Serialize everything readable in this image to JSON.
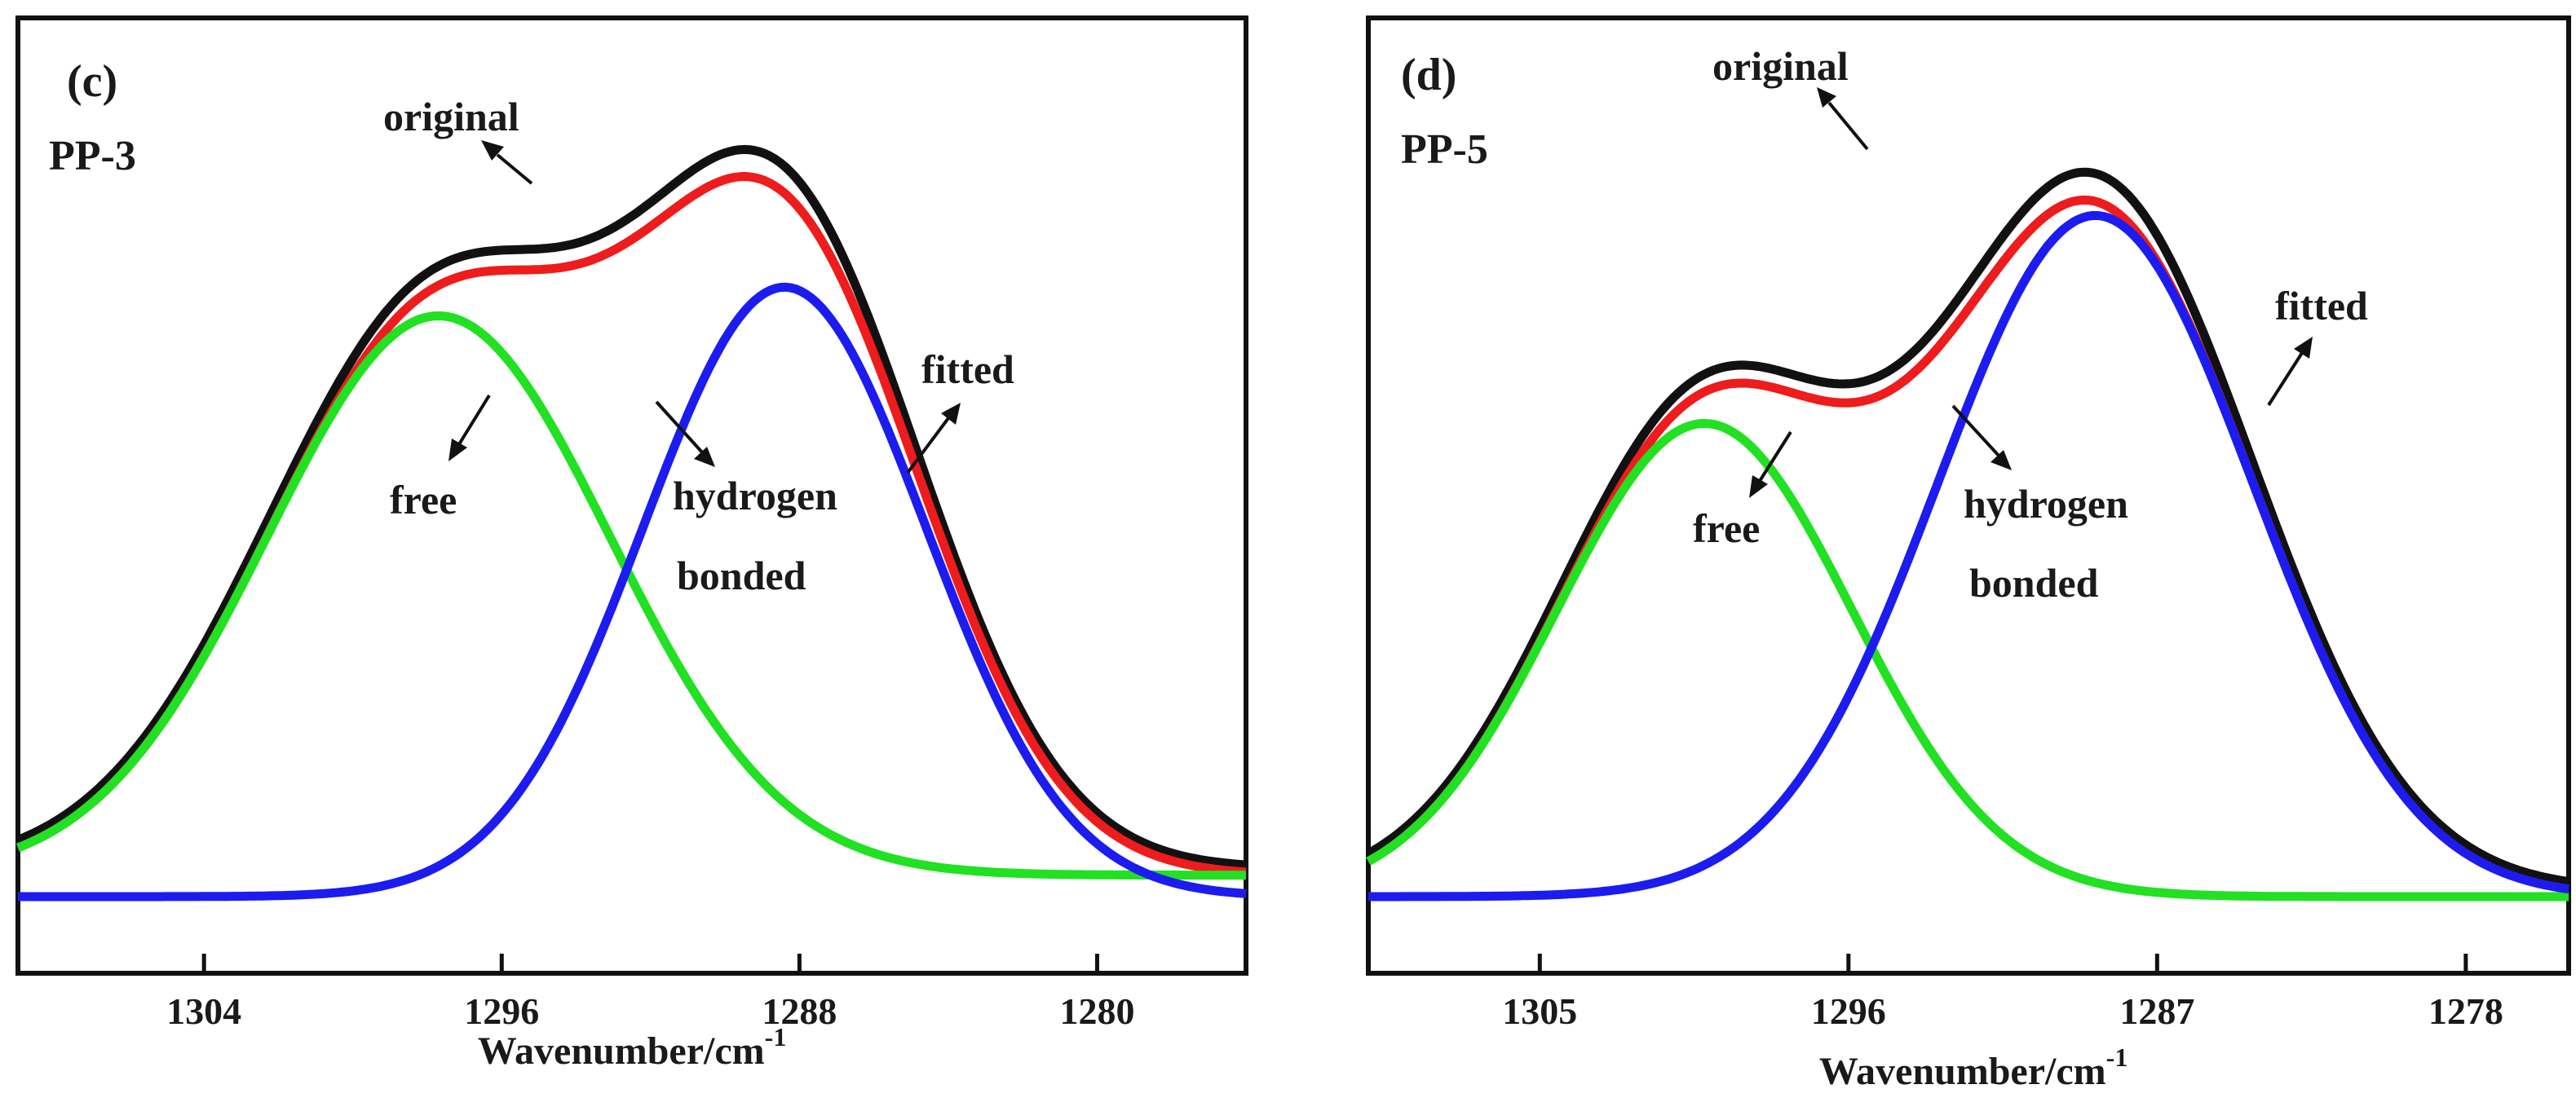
{
  "chart_data": [
    {
      "type": "line",
      "panel_label": "(c)",
      "sample_label": "PP-3",
      "xlabel": "Wavenumber/cm",
      "xlabel_superscript": "-1",
      "ylabel": "",
      "xlim": [
        1309,
        1276
      ],
      "ylim": [
        0,
        1.08
      ],
      "xticks": [
        1304,
        1296,
        1288,
        1280
      ],
      "xtick_labels": [
        "1304",
        "1296",
        "1288",
        "1280"
      ],
      "curve_labels": {
        "original": "original",
        "fitted": "fitted",
        "free": "free",
        "hydrogen_line1": "hydrogen",
        "hydrogen_line2": "bonded"
      },
      "components": {
        "free": {
          "center": 1297.7,
          "amplitude": 0.78,
          "sigma": 4.6,
          "baseline": 0.03
        },
        "hydrogen_bonded": {
          "center": 1288.4,
          "amplitude": 0.85,
          "sigma": 3.8,
          "baseline": 0.0
        }
      },
      "series": [
        {
          "name": "original",
          "color": "#111111"
        },
        {
          "name": "fitted",
          "color": "#ee1c1c"
        },
        {
          "name": "free",
          "color": "#22e022"
        },
        {
          "name": "hydrogen bonded",
          "color": "#1c1cf0"
        }
      ]
    },
    {
      "type": "line",
      "panel_label": "(d)",
      "sample_label": "PP-5",
      "xlabel": "Wavenumber/cm",
      "xlabel_superscript": "-1",
      "ylabel": "",
      "xlim": [
        1310,
        1275
      ],
      "ylim": [
        0,
        1.08
      ],
      "xticks": [
        1305,
        1296,
        1287,
        1278
      ],
      "xtick_labels": [
        "1305",
        "1296",
        "1287",
        "1278"
      ],
      "curve_labels": {
        "original": "original",
        "fitted": "fitted",
        "free": "free",
        "hydrogen_line1": "hydrogen",
        "hydrogen_line2": "bonded"
      },
      "components": {
        "free": {
          "center": 1300.2,
          "amplitude": 0.66,
          "sigma": 4.3,
          "baseline": 0.0
        },
        "hydrogen_bonded": {
          "center": 1288.8,
          "amplitude": 0.95,
          "sigma": 4.6,
          "baseline": 0.0
        }
      },
      "series": [
        {
          "name": "original",
          "color": "#111111"
        },
        {
          "name": "fitted",
          "color": "#ee1c1c"
        },
        {
          "name": "free",
          "color": "#22e022"
        },
        {
          "name": "hydrogen bonded",
          "color": "#1c1cf0"
        }
      ]
    }
  ]
}
